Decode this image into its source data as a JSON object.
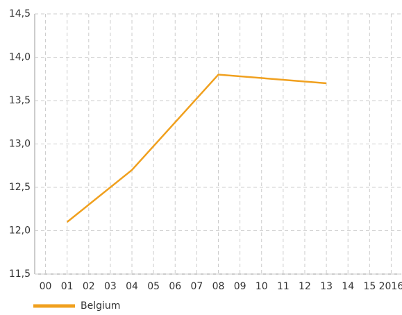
{
  "chart_data": {
    "type": "line",
    "series": [
      {
        "name": "Belgium",
        "color": "#f0a01e",
        "x": [
          2001,
          2004,
          2008,
          2013
        ],
        "values": [
          12.1,
          12.7,
          13.8,
          13.7
        ]
      }
    ],
    "xlim": [
      1999.5,
      2016.5
    ],
    "xticks": [
      {
        "value": 2000,
        "label": "00"
      },
      {
        "value": 2001,
        "label": "01"
      },
      {
        "value": 2002,
        "label": "02"
      },
      {
        "value": 2003,
        "label": "03"
      },
      {
        "value": 2004,
        "label": "04"
      },
      {
        "value": 2005,
        "label": "05"
      },
      {
        "value": 2006,
        "label": "06"
      },
      {
        "value": 2007,
        "label": "07"
      },
      {
        "value": 2008,
        "label": "08"
      },
      {
        "value": 2009,
        "label": "09"
      },
      {
        "value": 2010,
        "label": "10"
      },
      {
        "value": 2011,
        "label": "11"
      },
      {
        "value": 2012,
        "label": "12"
      },
      {
        "value": 2013,
        "label": "13"
      },
      {
        "value": 2014,
        "label": "14"
      },
      {
        "value": 2015,
        "label": "15"
      },
      2016
    ],
    "ylim": [
      11.5,
      14.5
    ],
    "yticks": [
      {
        "value": 11.5,
        "label": "11,5"
      },
      {
        "value": 12.0,
        "label": "12,0"
      },
      {
        "value": 12.5,
        "label": "12,5"
      },
      {
        "value": 13.0,
        "label": "13,0"
      },
      {
        "value": 13.5,
        "label": "13,5"
      },
      {
        "value": 14.0,
        "label": "14,0"
      },
      {
        "value": 14.5,
        "label": "14,5"
      }
    ],
    "grid": true,
    "legend": "bottom-left"
  }
}
